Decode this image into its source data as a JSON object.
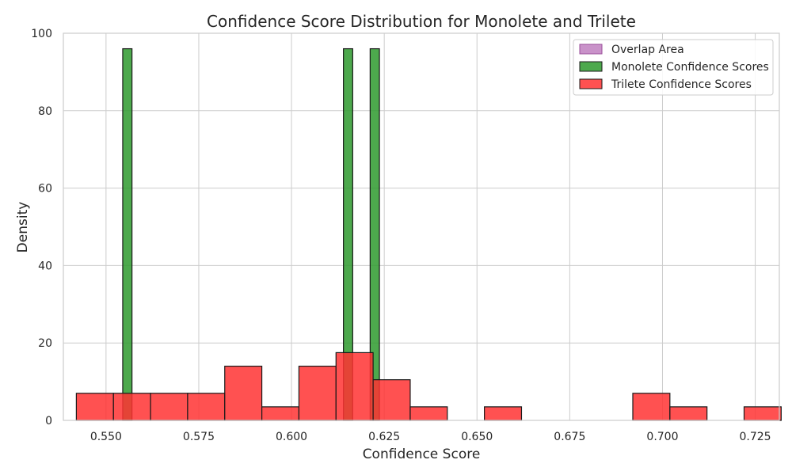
{
  "chart_data": {
    "type": "bar",
    "title": "Confidence Score Distribution for Monolete and Trilete",
    "xlabel": "Confidence Score",
    "ylabel": "Density",
    "xlim": [
      0.5385,
      0.7315
    ],
    "ylim": [
      0,
      100
    ],
    "x_ticks": [
      0.55,
      0.575,
      0.6,
      0.625,
      0.65,
      0.675,
      0.7,
      0.725
    ],
    "x_tick_labels": [
      "0.550",
      "0.575",
      "0.600",
      "0.625",
      "0.650",
      "0.675",
      "0.700",
      "0.725"
    ],
    "y_ticks": [
      0,
      20,
      40,
      60,
      80,
      100
    ],
    "y_tick_labels": [
      "0",
      "20",
      "40",
      "60",
      "80",
      "100"
    ],
    "grid": true,
    "legend_position": "top-right",
    "series": [
      {
        "name": "Overlap Area",
        "color": "#bf7fbf",
        "edge": "#9a4f9a",
        "bins": []
      },
      {
        "name": "Monolete Confidence Scores",
        "color": "#2e9a2e",
        "edge": "#1a1a1a",
        "bins": [
          {
            "start": 0.5545,
            "end": 0.557,
            "value": 96
          },
          {
            "start": 0.614,
            "end": 0.6165,
            "value": 96
          },
          {
            "start": 0.6212,
            "end": 0.6237,
            "value": 96
          }
        ]
      },
      {
        "name": "Trilete Confidence Scores",
        "color": "#ff3333",
        "edge": "#1a1a1a",
        "bins": [
          {
            "start": 0.542,
            "end": 0.552,
            "value": 7
          },
          {
            "start": 0.552,
            "end": 0.562,
            "value": 7
          },
          {
            "start": 0.562,
            "end": 0.572,
            "value": 7
          },
          {
            "start": 0.572,
            "end": 0.582,
            "value": 7
          },
          {
            "start": 0.582,
            "end": 0.592,
            "value": 14
          },
          {
            "start": 0.592,
            "end": 0.602,
            "value": 3.5
          },
          {
            "start": 0.602,
            "end": 0.612,
            "value": 14
          },
          {
            "start": 0.612,
            "end": 0.622,
            "value": 17.5
          },
          {
            "start": 0.622,
            "end": 0.632,
            "value": 10.5
          },
          {
            "start": 0.632,
            "end": 0.642,
            "value": 3.5
          },
          {
            "start": 0.652,
            "end": 0.662,
            "value": 3.5
          },
          {
            "start": 0.692,
            "end": 0.702,
            "value": 7
          },
          {
            "start": 0.702,
            "end": 0.712,
            "value": 3.5
          },
          {
            "start": 0.722,
            "end": 0.732,
            "value": 3.5
          }
        ]
      }
    ]
  }
}
